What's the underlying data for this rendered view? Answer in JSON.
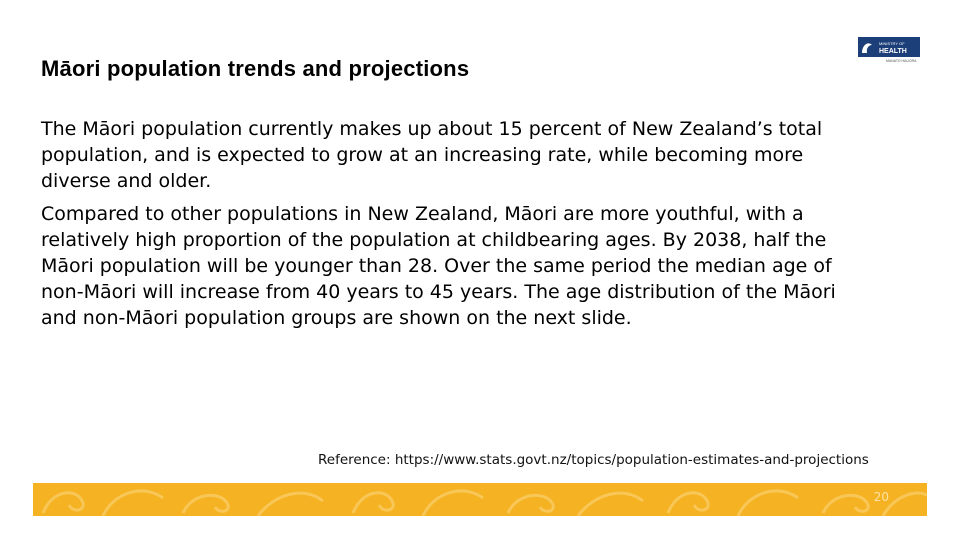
{
  "slide": {
    "title": "Māori population trends and projections",
    "paragraphs": [
      "The Māori population currently makes up about 15 percent of New Zealand’s total population, and is expected to grow at an increasing rate, while becoming more diverse and older.",
      "Compared to other populations in New Zealand, Māori are more youthful, with a relatively high proportion of the population at childbearing ages. By 2038, half the Māori population will be younger than 28. Over the same period the median age of non-Māori will increase from 40 years to 45 years. The age distribution of the Māori and non-Māori population groups are shown on the next slide."
    ],
    "reference": "Reference: https://www.stats.govt.nz/topics/population-estimates-and-projections",
    "page_number": "20"
  },
  "logo": {
    "line1": "MINISTRY OF",
    "line2": "HEALTH",
    "line3": "MANATŪ HAUORA",
    "icon": "ministry-of-health-koru-icon"
  },
  "colors": {
    "footer_band": "#f5b223",
    "logo_navy": "#1c3f7a"
  }
}
